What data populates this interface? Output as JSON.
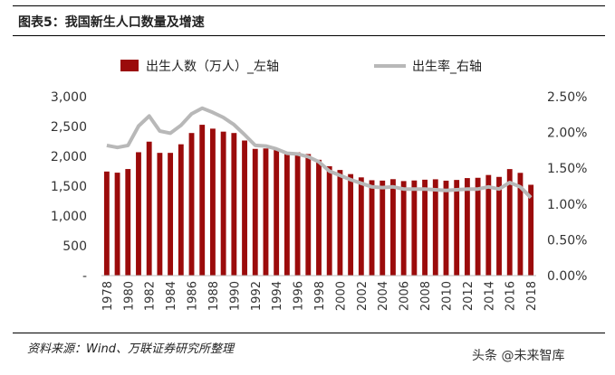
{
  "figure_title": "图表5：我国新生人口数量及增速",
  "source": "资料来源：Wind、万联证券研究所整理",
  "watermark": "头条 @未来智库",
  "colors": {
    "bar": "#9b0b0b",
    "line": "#b8b8b8"
  },
  "chart_data": {
    "type": "bar",
    "legend_position": "top",
    "grid": false,
    "categories": [
      "1978",
      "1979",
      "1980",
      "1981",
      "1982",
      "1983",
      "1984",
      "1985",
      "1986",
      "1987",
      "1988",
      "1989",
      "1990",
      "1991",
      "1992",
      "1993",
      "1994",
      "1995",
      "1996",
      "1997",
      "1998",
      "1999",
      "2000",
      "2001",
      "2002",
      "2003",
      "2004",
      "2005",
      "2006",
      "2007",
      "2008",
      "2009",
      "2010",
      "2011",
      "2012",
      "2013",
      "2014",
      "2015",
      "2016",
      "2017",
      "2018"
    ],
    "x_tick_labels": [
      "1978",
      "1980",
      "1982",
      "1984",
      "1986",
      "1988",
      "1990",
      "1992",
      "1994",
      "1996",
      "1998",
      "2000",
      "2002",
      "2004",
      "2006",
      "2008",
      "2010",
      "2012",
      "2014",
      "2016",
      "2018"
    ],
    "y_left": {
      "ylim": [
        0,
        3000
      ],
      "ticks": [
        0,
        500,
        1000,
        1500,
        2000,
        2500,
        3000
      ],
      "tick_labels": [
        "-",
        "500",
        "1,000",
        "1,500",
        "2,000",
        "2,500",
        "3,000"
      ]
    },
    "y_right": {
      "ylim": [
        0,
        2.5
      ],
      "ticks": [
        0,
        0.5,
        1.0,
        1.5,
        2.0,
        2.5
      ],
      "tick_labels": [
        "0.00%",
        "0.50%",
        "1.00%",
        "1.50%",
        "2.00%",
        "2.50%"
      ]
    },
    "series": [
      {
        "name": "出生人数（万人）_左轴",
        "type": "bar",
        "axis": "left",
        "values": [
          1745,
          1726,
          1787,
          2069,
          2246,
          2058,
          2058,
          2202,
          2391,
          2529,
          2464,
          2414,
          2391,
          2265,
          2125,
          2132,
          2110,
          2063,
          2067,
          2038,
          1942,
          1834,
          1771,
          1702,
          1647,
          1599,
          1593,
          1617,
          1585,
          1595,
          1608,
          1615,
          1592,
          1604,
          1635,
          1640,
          1687,
          1655,
          1786,
          1723,
          1523
        ]
      },
      {
        "name": "出生率_右轴",
        "type": "line",
        "axis": "right",
        "values": [
          1.82,
          1.79,
          1.82,
          2.09,
          2.23,
          2.02,
          1.99,
          2.1,
          2.26,
          2.34,
          2.28,
          2.21,
          2.11,
          1.97,
          1.82,
          1.81,
          1.77,
          1.71,
          1.7,
          1.66,
          1.59,
          1.46,
          1.4,
          1.34,
          1.29,
          1.24,
          1.23,
          1.24,
          1.21,
          1.21,
          1.21,
          1.2,
          1.19,
          1.2,
          1.21,
          1.21,
          1.24,
          1.21,
          1.3,
          1.24,
          1.09
        ]
      }
    ]
  }
}
